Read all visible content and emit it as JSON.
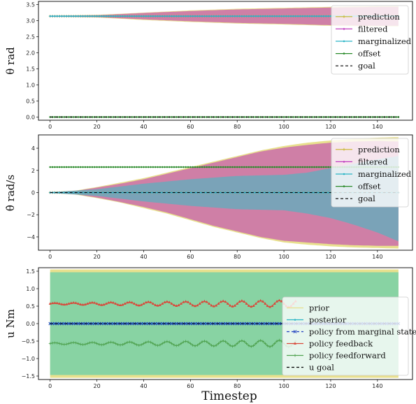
{
  "chart_data": [
    {
      "type": "line",
      "ylabel": "θ rad",
      "xlim": [
        -5,
        155
      ],
      "ylim": [
        -0.1,
        3.6
      ],
      "xticks": [
        0,
        20,
        40,
        60,
        80,
        100,
        120,
        140
      ],
      "xtick_labels": [
        "0",
        "20",
        "40",
        "60",
        "80",
        "100",
        "120",
        "140"
      ],
      "yticks": [
        0.0,
        0.5,
        1.0,
        1.5,
        2.0,
        2.5,
        3.0,
        3.5
      ],
      "ytick_labels": [
        "0.0",
        "0.5",
        "1.0",
        "1.5",
        "2.0",
        "2.5",
        "3.0",
        "3.5"
      ],
      "legend_position": "right",
      "legend": [
        "prediction",
        "filtered",
        "marginalized",
        "offset",
        "goal"
      ],
      "bands": [
        {
          "name": "prediction",
          "color": "#e8e08e",
          "x": [
            0,
            20,
            40,
            60,
            80,
            100,
            120,
            140,
            149
          ],
          "upper": [
            3.15,
            3.18,
            3.25,
            3.32,
            3.37,
            3.4,
            3.43,
            3.45,
            3.45
          ],
          "lower": [
            3.13,
            3.1,
            3.02,
            2.96,
            2.91,
            2.88,
            2.84,
            2.82,
            2.82
          ]
        },
        {
          "name": "filtered",
          "color": "#cf7fa6",
          "x": [
            0,
            20,
            40,
            60,
            80,
            100,
            120,
            140,
            149
          ],
          "upper": [
            3.15,
            3.17,
            3.24,
            3.3,
            3.35,
            3.38,
            3.41,
            3.43,
            3.43
          ],
          "lower": [
            3.13,
            3.11,
            3.04,
            2.98,
            2.93,
            2.9,
            2.86,
            2.84,
            2.84
          ]
        }
      ],
      "series": [
        {
          "name": "prediction",
          "color": "#c8b42a",
          "marker": "+",
          "x_range": [
            0,
            149
          ],
          "value": 3.14
        },
        {
          "name": "filtered",
          "color": "#c040c0",
          "marker": "dot",
          "x_range": [
            0,
            149
          ],
          "value": 3.14
        },
        {
          "name": "marginalized",
          "color": "#2bb5c6",
          "marker": "dot",
          "x_range": [
            0,
            149
          ],
          "value": 3.14
        },
        {
          "name": "offset",
          "color": "#2a8a2a",
          "marker": "dot",
          "x_range": [
            0,
            149
          ],
          "value": 0.0
        },
        {
          "name": "goal",
          "color": "#000000",
          "dash": true,
          "x_range": [
            0,
            149
          ],
          "value": 0.0
        }
      ]
    },
    {
      "type": "line",
      "ylabel": "θ̇ rad/s",
      "xlim": [
        -5,
        155
      ],
      "ylim": [
        -5.2,
        5.2
      ],
      "xticks": [
        0,
        20,
        40,
        60,
        80,
        100,
        120,
        140
      ],
      "xtick_labels": [
        "0",
        "20",
        "40",
        "60",
        "80",
        "100",
        "120",
        "140"
      ],
      "yticks": [
        -4,
        -2,
        0,
        2,
        4
      ],
      "ytick_labels": [
        "−4",
        "−2",
        "0",
        "2",
        "4"
      ],
      "legend_position": "right",
      "legend": [
        "prediction",
        "filtered",
        "marginalized",
        "offset",
        "goal"
      ],
      "bands": [
        {
          "name": "prediction",
          "color": "#e8e08e",
          "x": [
            0,
            10,
            20,
            30,
            40,
            50,
            60,
            70,
            80,
            90,
            100,
            110,
            120,
            130,
            140,
            149
          ],
          "upper": [
            0.05,
            0.15,
            0.5,
            0.9,
            1.3,
            1.8,
            2.3,
            2.8,
            3.3,
            3.8,
            4.2,
            4.5,
            4.7,
            4.85,
            4.95,
            5.0
          ],
          "lower": [
            -0.05,
            -0.15,
            -0.5,
            -0.9,
            -1.4,
            -1.9,
            -2.5,
            -3.1,
            -3.6,
            -4.1,
            -4.5,
            -4.7,
            -4.85,
            -4.95,
            -5.0,
            -5.05
          ]
        },
        {
          "name": "filtered",
          "color": "#cf7fa6",
          "x": [
            0,
            10,
            20,
            30,
            40,
            50,
            60,
            70,
            80,
            90,
            100,
            110,
            120,
            130,
            140,
            149
          ],
          "upper": [
            0.04,
            0.12,
            0.45,
            0.8,
            1.2,
            1.7,
            2.2,
            2.7,
            3.2,
            3.7,
            4.05,
            4.3,
            4.5,
            4.6,
            4.65,
            4.6
          ],
          "lower": [
            -0.04,
            -0.12,
            -0.45,
            -0.85,
            -1.3,
            -1.8,
            -2.4,
            -3.0,
            -3.5,
            -4.0,
            -4.35,
            -4.5,
            -4.65,
            -4.75,
            -4.8,
            -4.8
          ]
        },
        {
          "name": "marginalized",
          "color": "#7aa3b8",
          "x": [
            0,
            20,
            40,
            60,
            80,
            100,
            110,
            120,
            130,
            140,
            149
          ],
          "upper": [
            0.03,
            0.3,
            0.8,
            1.2,
            1.5,
            1.6,
            1.8,
            2.2,
            2.6,
            3.0,
            3.3
          ],
          "lower": [
            -0.03,
            -0.3,
            -0.8,
            -1.2,
            -1.5,
            -1.6,
            -1.9,
            -2.3,
            -2.9,
            -3.6,
            -4.4
          ]
        }
      ],
      "series": [
        {
          "name": "prediction",
          "color": "#c8b42a",
          "marker": "+",
          "x_range": [
            0,
            149
          ],
          "value": 0.0
        },
        {
          "name": "filtered",
          "color": "#c040c0",
          "marker": "dot",
          "x_range": [
            0,
            149
          ],
          "value": 0.0
        },
        {
          "name": "marginalized",
          "color": "#2bb5c6",
          "marker": "dot",
          "x_range": [
            0,
            149
          ],
          "value": 0.0
        },
        {
          "name": "offset",
          "color": "#2a8a2a",
          "marker": "dot",
          "x_range": [
            0,
            149
          ],
          "value": 2.3
        },
        {
          "name": "goal",
          "color": "#000000",
          "dash": true,
          "x_range": [
            0,
            149
          ],
          "value": 0.0
        }
      ]
    },
    {
      "type": "line",
      "ylabel": "u Nm",
      "xlabel": "Timestep",
      "xlim": [
        -5,
        155
      ],
      "ylim": [
        -1.6,
        1.6
      ],
      "xticks": [
        0,
        20,
        40,
        60,
        80,
        100,
        120,
        140
      ],
      "xtick_labels": [
        "0",
        "20",
        "40",
        "60",
        "80",
        "100",
        "120",
        "140"
      ],
      "yticks": [
        -1.5,
        -1.0,
        -0.5,
        0.0,
        0.5,
        1.0,
        1.5
      ],
      "ytick_labels": [
        "−1.5",
        "−1.0",
        "−0.5",
        "0.0",
        "0.5",
        "1.0",
        "1.5"
      ],
      "legend_position": "right",
      "legend": [
        "prior",
        "posterior",
        "policy from marginal state",
        "policy feedback",
        "policy feedforward",
        "u goal"
      ],
      "bands": [
        {
          "name": "prior",
          "color": "#e8e08e",
          "x": [
            0,
            149
          ],
          "upper": [
            1.55,
            1.55
          ],
          "lower": [
            -1.55,
            -1.55
          ]
        },
        {
          "name": "posterior",
          "color": "#88d3a3",
          "x": [
            0,
            149
          ],
          "upper": [
            1.47,
            1.47
          ],
          "lower": [
            -1.47,
            -1.47
          ]
        }
      ],
      "series": [
        {
          "name": "posterior",
          "color": "#2bb5c6",
          "marker": "dot",
          "x_range": [
            0,
            149
          ],
          "value": 0.0
        },
        {
          "name": "policy from marginal state",
          "color": "#1f3fbf",
          "marker": "x",
          "dash": true,
          "x_range": [
            0,
            149
          ],
          "value": 0.0
        },
        {
          "name": "policy feedback",
          "color": "#d9483a",
          "marker": "triangle",
          "x_range": [
            0,
            105
          ],
          "center": 0.57,
          "amp_start": 0.02,
          "amp_end": 0.1,
          "period": 8
        },
        {
          "name": "policy feedforward",
          "color": "#4fa24f",
          "marker": "+",
          "x_range": [
            0,
            105
          ],
          "center": -0.57,
          "amp_start": 0.02,
          "amp_end": 0.1,
          "period": 8
        },
        {
          "name": "u goal",
          "color": "#000000",
          "dash": true,
          "x_range": [
            0,
            149
          ],
          "value": 0.0
        }
      ]
    }
  ]
}
